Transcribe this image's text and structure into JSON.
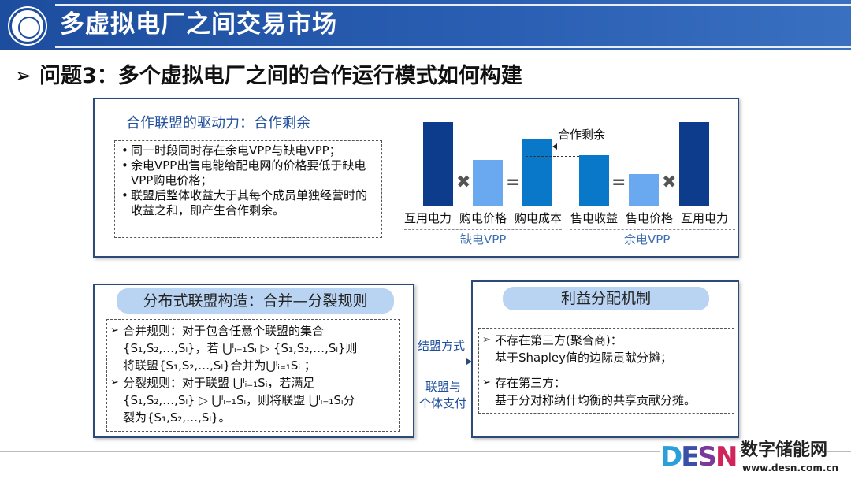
{
  "header": {
    "title": "多虚拟电厂之间交易市场",
    "logo": "university-seal-logo"
  },
  "question": "➢ 问题3：多个虚拟电厂之间的合作运行模式如何构建",
  "driving": {
    "heading": "合作联盟的驱动力：合作剩余",
    "bullets": [
      "同一时段同时存在余电VPP与缺电VPP；",
      "余电VPP出售电能给配电网的价格要低于缺电VPP购电价格；",
      "联盟后整体收益大于其每个成员单独经营时的收益之和，即产生合作剩余。"
    ],
    "diagram": {
      "bar_labels": [
        "互用电力",
        "购电价格",
        "购电成本",
        "售电收益",
        "售电价格",
        "互用电力"
      ],
      "operators": [
        "✖",
        "=",
        "=",
        "✖"
      ],
      "groups": [
        "缺电VPP",
        "余电VPP"
      ],
      "annotation": "合作剩余",
      "colors": {
        "dark": "#0d3c8c",
        "light": "#6aa8f0",
        "mid": "#0a78c8"
      }
    }
  },
  "structure": {
    "heading": "分布式联盟构造：合并—分裂规则",
    "lines": [
      "合并规则：对于包含任意个联盟的集合",
      "{S₁,S₂,…,Sₗ}，若 ⋃ˡᵢ₌₁Sᵢ ▷ {S₁,S₂,…,Sₗ}则",
      "将联盟{S₁,S₂,…,Sₗ}合并为⋃ˡᵢ₌₁Sᵢ ；",
      "分裂规则：对于联盟 ⋃ˡᵢ₌₁Sᵢ，若满足",
      "{S₁,S₂,…,Sₗ} ▷ ⋃ˡᵢ₌₁Sᵢ，则将联盟 ⋃ˡᵢ₌₁Sᵢ分",
      "裂为{S₁,S₂,…,Sₗ}。"
    ]
  },
  "connector": {
    "top": "结盟方式",
    "bottom1": "联盟与",
    "bottom2": "个体支付"
  },
  "distribution": {
    "heading": "利益分配机制",
    "lines": [
      "不存在第三方(聚合商)：",
      "基于Shapley值的边际贡献分摊；",
      "存在第三方：",
      "基于分对称纳什均衡的共享贡献分摊。"
    ]
  },
  "watermark": {
    "brand": "DESN",
    "name": "数字储能网",
    "url": "www.desn.com.cn"
  }
}
